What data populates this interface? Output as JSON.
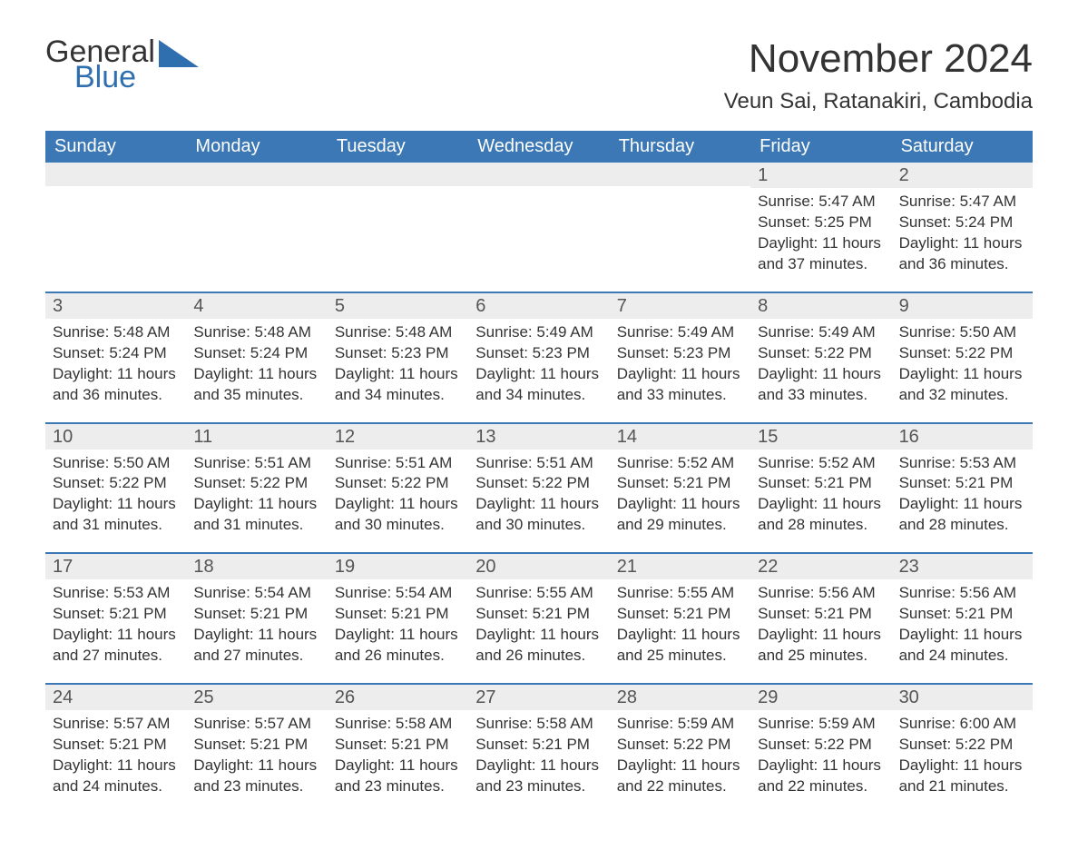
{
  "logo": {
    "text1": "General",
    "text2": "Blue",
    "shape_color": "#2f6fb0"
  },
  "title": "November 2024",
  "location": "Veun Sai, Ratanakiri, Cambodia",
  "colors": {
    "header_bg": "#3b78b5",
    "header_text": "#ffffff",
    "daynum_bg": "#ededed",
    "rule": "#3b78b5",
    "body_text": "#333333"
  },
  "days_of_week": [
    "Sunday",
    "Monday",
    "Tuesday",
    "Wednesday",
    "Thursday",
    "Friday",
    "Saturday"
  ],
  "weeks": [
    [
      {
        "n": "",
        "sunrise": "",
        "sunset": "",
        "daylight": ""
      },
      {
        "n": "",
        "sunrise": "",
        "sunset": "",
        "daylight": ""
      },
      {
        "n": "",
        "sunrise": "",
        "sunset": "",
        "daylight": ""
      },
      {
        "n": "",
        "sunrise": "",
        "sunset": "",
        "daylight": ""
      },
      {
        "n": "",
        "sunrise": "",
        "sunset": "",
        "daylight": ""
      },
      {
        "n": "1",
        "sunrise": "Sunrise: 5:47 AM",
        "sunset": "Sunset: 5:25 PM",
        "daylight": "Daylight: 11 hours and 37 minutes."
      },
      {
        "n": "2",
        "sunrise": "Sunrise: 5:47 AM",
        "sunset": "Sunset: 5:24 PM",
        "daylight": "Daylight: 11 hours and 36 minutes."
      }
    ],
    [
      {
        "n": "3",
        "sunrise": "Sunrise: 5:48 AM",
        "sunset": "Sunset: 5:24 PM",
        "daylight": "Daylight: 11 hours and 36 minutes."
      },
      {
        "n": "4",
        "sunrise": "Sunrise: 5:48 AM",
        "sunset": "Sunset: 5:24 PM",
        "daylight": "Daylight: 11 hours and 35 minutes."
      },
      {
        "n": "5",
        "sunrise": "Sunrise: 5:48 AM",
        "sunset": "Sunset: 5:23 PM",
        "daylight": "Daylight: 11 hours and 34 minutes."
      },
      {
        "n": "6",
        "sunrise": "Sunrise: 5:49 AM",
        "sunset": "Sunset: 5:23 PM",
        "daylight": "Daylight: 11 hours and 34 minutes."
      },
      {
        "n": "7",
        "sunrise": "Sunrise: 5:49 AM",
        "sunset": "Sunset: 5:23 PM",
        "daylight": "Daylight: 11 hours and 33 minutes."
      },
      {
        "n": "8",
        "sunrise": "Sunrise: 5:49 AM",
        "sunset": "Sunset: 5:22 PM",
        "daylight": "Daylight: 11 hours and 33 minutes."
      },
      {
        "n": "9",
        "sunrise": "Sunrise: 5:50 AM",
        "sunset": "Sunset: 5:22 PM",
        "daylight": "Daylight: 11 hours and 32 minutes."
      }
    ],
    [
      {
        "n": "10",
        "sunrise": "Sunrise: 5:50 AM",
        "sunset": "Sunset: 5:22 PM",
        "daylight": "Daylight: 11 hours and 31 minutes."
      },
      {
        "n": "11",
        "sunrise": "Sunrise: 5:51 AM",
        "sunset": "Sunset: 5:22 PM",
        "daylight": "Daylight: 11 hours and 31 minutes."
      },
      {
        "n": "12",
        "sunrise": "Sunrise: 5:51 AM",
        "sunset": "Sunset: 5:22 PM",
        "daylight": "Daylight: 11 hours and 30 minutes."
      },
      {
        "n": "13",
        "sunrise": "Sunrise: 5:51 AM",
        "sunset": "Sunset: 5:22 PM",
        "daylight": "Daylight: 11 hours and 30 minutes."
      },
      {
        "n": "14",
        "sunrise": "Sunrise: 5:52 AM",
        "sunset": "Sunset: 5:21 PM",
        "daylight": "Daylight: 11 hours and 29 minutes."
      },
      {
        "n": "15",
        "sunrise": "Sunrise: 5:52 AM",
        "sunset": "Sunset: 5:21 PM",
        "daylight": "Daylight: 11 hours and 28 minutes."
      },
      {
        "n": "16",
        "sunrise": "Sunrise: 5:53 AM",
        "sunset": "Sunset: 5:21 PM",
        "daylight": "Daylight: 11 hours and 28 minutes."
      }
    ],
    [
      {
        "n": "17",
        "sunrise": "Sunrise: 5:53 AM",
        "sunset": "Sunset: 5:21 PM",
        "daylight": "Daylight: 11 hours and 27 minutes."
      },
      {
        "n": "18",
        "sunrise": "Sunrise: 5:54 AM",
        "sunset": "Sunset: 5:21 PM",
        "daylight": "Daylight: 11 hours and 27 minutes."
      },
      {
        "n": "19",
        "sunrise": "Sunrise: 5:54 AM",
        "sunset": "Sunset: 5:21 PM",
        "daylight": "Daylight: 11 hours and 26 minutes."
      },
      {
        "n": "20",
        "sunrise": "Sunrise: 5:55 AM",
        "sunset": "Sunset: 5:21 PM",
        "daylight": "Daylight: 11 hours and 26 minutes."
      },
      {
        "n": "21",
        "sunrise": "Sunrise: 5:55 AM",
        "sunset": "Sunset: 5:21 PM",
        "daylight": "Daylight: 11 hours and 25 minutes."
      },
      {
        "n": "22",
        "sunrise": "Sunrise: 5:56 AM",
        "sunset": "Sunset: 5:21 PM",
        "daylight": "Daylight: 11 hours and 25 minutes."
      },
      {
        "n": "23",
        "sunrise": "Sunrise: 5:56 AM",
        "sunset": "Sunset: 5:21 PM",
        "daylight": "Daylight: 11 hours and 24 minutes."
      }
    ],
    [
      {
        "n": "24",
        "sunrise": "Sunrise: 5:57 AM",
        "sunset": "Sunset: 5:21 PM",
        "daylight": "Daylight: 11 hours and 24 minutes."
      },
      {
        "n": "25",
        "sunrise": "Sunrise: 5:57 AM",
        "sunset": "Sunset: 5:21 PM",
        "daylight": "Daylight: 11 hours and 23 minutes."
      },
      {
        "n": "26",
        "sunrise": "Sunrise: 5:58 AM",
        "sunset": "Sunset: 5:21 PM",
        "daylight": "Daylight: 11 hours and 23 minutes."
      },
      {
        "n": "27",
        "sunrise": "Sunrise: 5:58 AM",
        "sunset": "Sunset: 5:21 PM",
        "daylight": "Daylight: 11 hours and 23 minutes."
      },
      {
        "n": "28",
        "sunrise": "Sunrise: 5:59 AM",
        "sunset": "Sunset: 5:22 PM",
        "daylight": "Daylight: 11 hours and 22 minutes."
      },
      {
        "n": "29",
        "sunrise": "Sunrise: 5:59 AM",
        "sunset": "Sunset: 5:22 PM",
        "daylight": "Daylight: 11 hours and 22 minutes."
      },
      {
        "n": "30",
        "sunrise": "Sunrise: 6:00 AM",
        "sunset": "Sunset: 5:22 PM",
        "daylight": "Daylight: 11 hours and 21 minutes."
      }
    ]
  ]
}
